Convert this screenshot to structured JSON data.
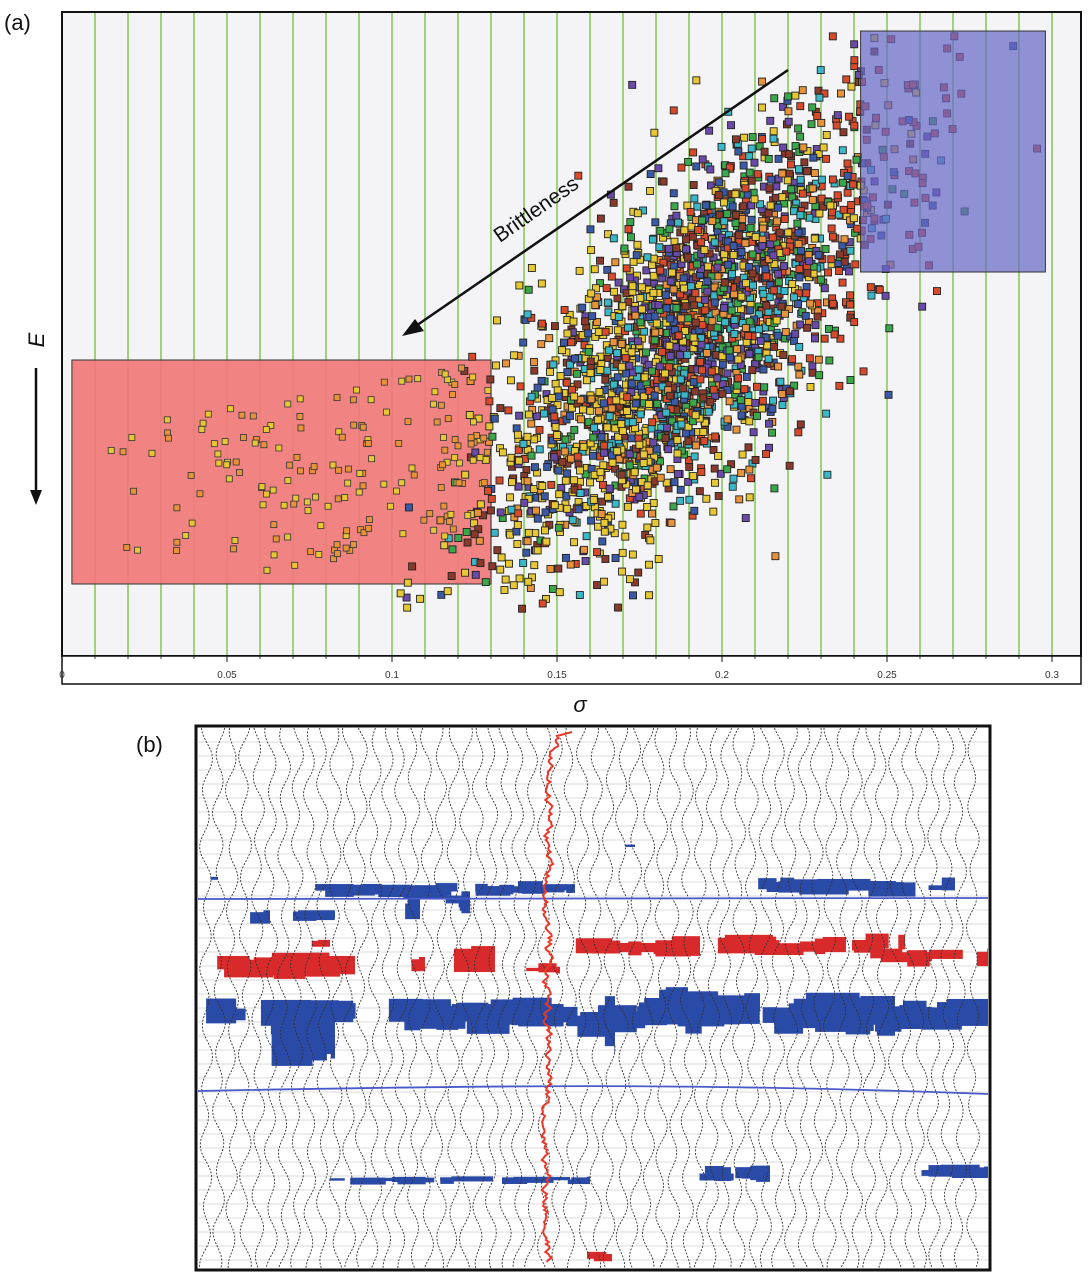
{
  "panel_a": {
    "label": "(a)"
  },
  "panel_b": {
    "label": "(b)"
  },
  "chart_data": [
    {
      "type": "scatter",
      "panel": "(a)",
      "xlabel": "σ",
      "ylabel": "E",
      "xlim": [
        0,
        0.3
      ],
      "x_ticks": [
        "0",
        "0.05",
        "0.1",
        "0.15",
        "0.2",
        "0.25",
        "0.3"
      ],
      "grid": "vertical green lines every 0.01",
      "point_colors": [
        "#e8c832",
        "#d94a2a",
        "#3a5aa8",
        "#6a4aa8",
        "#3aa84a",
        "#e8923a",
        "#3ab8c8",
        "#8a3a2a"
      ],
      "annotations": [
        "Brittleness"
      ],
      "highlight_boxes": [
        {
          "color": "#f07878",
          "x": [
            0.003,
            0.13
          ]
        },
        {
          "color": "#6a6ac8",
          "x": [
            0.242,
            0.298
          ]
        }
      ],
      "cloud": {
        "center_sigma": 0.19,
        "spread_sigma": 0.03,
        "correlation": "E increases with σ",
        "approx_points": 3000
      }
    },
    {
      "type": "seismic-section",
      "panel": "(b)",
      "trace_count": 60,
      "wiggle_color": "#333333",
      "well_log_color": "#e8382a",
      "horizon_color": "#4a5ac8",
      "bodies": [
        {
          "color": "#2a4aa8",
          "label": ""
        },
        {
          "color": "#d82a2a",
          "label": ""
        }
      ]
    }
  ]
}
